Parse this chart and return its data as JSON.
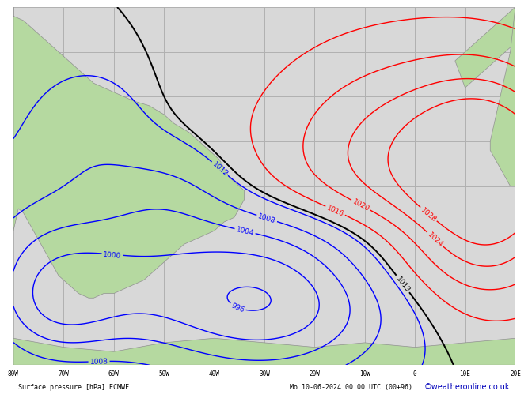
{
  "title_left": "Surface pressure [hPa] ECMWF",
  "title_right": "Mo 10-06-2024 00:00 UTC (00+96)",
  "credit": "©weatheronline.co.uk",
  "background_land": "#b5d9a0",
  "background_ocean": "#d8d8d8",
  "grid_color": "#b0b0b0",
  "contour_color_blue": "#0000ff",
  "contour_color_red": "#ff0000",
  "contour_color_black": "#000000",
  "bottom_bar_color": "#c8c8c8",
  "lon_min": -80,
  "lon_max": 20,
  "lat_min": -70,
  "lat_max": 10,
  "lon_ticks": [
    -80,
    -70,
    -60,
    -50,
    -40,
    -30,
    -20,
    -10,
    0,
    10,
    20
  ],
  "lat_ticks": [
    -70,
    -60,
    -50,
    -40,
    -30,
    -20,
    -10,
    0,
    10
  ],
  "lon_labels": [
    "80W",
    "70W",
    "60W",
    "50W",
    "40W",
    "30W",
    "20W",
    "10W",
    "0",
    "10E",
    "20E"
  ]
}
